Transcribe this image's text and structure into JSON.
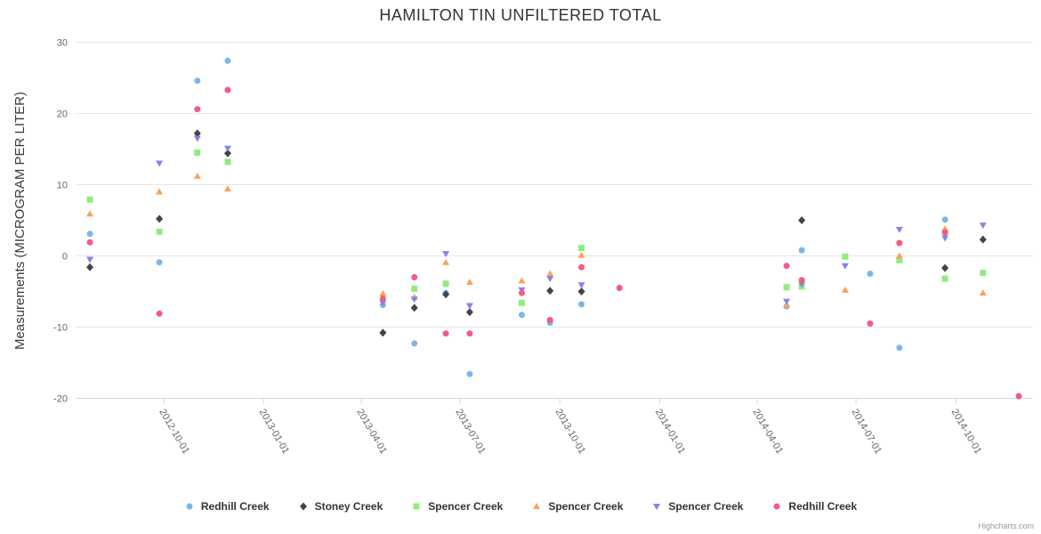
{
  "page": {
    "credits": "Highcharts.com"
  },
  "chart_data": {
    "type": "scatter",
    "title": "HAMILTON TIN UNFILTERED TOTAL",
    "xlabel": "",
    "ylabel": "Measurements (MICROGRAM PER LITER)",
    "ylim": [
      -20,
      30
    ],
    "yticks": [
      30,
      20,
      10,
      0,
      -10,
      -20
    ],
    "xticks": [
      "2012-10-01",
      "2013-01-01",
      "2013-04-01",
      "2013-07-01",
      "2013-10-01",
      "2014-01-01",
      "2014-04-01",
      "2014-07-01",
      "2014-10-01"
    ],
    "xlim": [
      "2012-07-12",
      "2014-12-10"
    ],
    "grid": true,
    "legend_position": "bottom",
    "series": [
      {
        "name": "Redhill Creek",
        "color": "#7cb5ec",
        "marker": "circle",
        "points": [
          [
            "2012-07-25",
            3.1
          ],
          [
            "2012-09-27",
            -0.9
          ],
          [
            "2012-11-01",
            24.6
          ],
          [
            "2012-11-29",
            27.4
          ],
          [
            "2013-04-21",
            -6.9
          ],
          [
            "2013-05-20",
            -12.3
          ],
          [
            "2013-06-18",
            -5.2
          ],
          [
            "2013-07-10",
            -16.6
          ],
          [
            "2013-08-27",
            -8.3
          ],
          [
            "2013-09-22",
            -9.4
          ],
          [
            "2013-10-21",
            -6.8
          ],
          [
            "2014-04-28",
            -7.1
          ],
          [
            "2014-05-12",
            0.8
          ],
          [
            "2014-07-14",
            -2.5
          ],
          [
            "2014-08-10",
            -12.9
          ],
          [
            "2014-09-21",
            5.1
          ]
        ]
      },
      {
        "name": "Stoney Creek",
        "color": "#434348",
        "marker": "diamond",
        "points": [
          [
            "2012-07-25",
            -1.6
          ],
          [
            "2012-09-27",
            5.2
          ],
          [
            "2012-11-01",
            17.2
          ],
          [
            "2012-11-29",
            14.4
          ],
          [
            "2013-04-21",
            -10.8
          ],
          [
            "2013-05-20",
            -7.3
          ],
          [
            "2013-06-18",
            -5.4
          ],
          [
            "2013-07-10",
            -7.9
          ],
          [
            "2013-09-22",
            -4.9
          ],
          [
            "2013-10-21",
            -5.0
          ],
          [
            "2014-05-12",
            5.0
          ],
          [
            "2014-09-21",
            -1.7
          ],
          [
            "2014-10-26",
            2.3
          ]
        ]
      },
      {
        "name": "Spencer Creek",
        "color": "#90ed7d",
        "marker": "square",
        "points": [
          [
            "2012-07-25",
            7.9
          ],
          [
            "2012-09-27",
            3.4
          ],
          [
            "2012-11-01",
            14.5
          ],
          [
            "2012-11-29",
            13.2
          ],
          [
            "2013-05-20",
            -4.6
          ],
          [
            "2013-06-18",
            -3.9
          ],
          [
            "2013-08-27",
            -6.6
          ],
          [
            "2013-10-21",
            1.1
          ],
          [
            "2014-04-28",
            -4.4
          ],
          [
            "2014-05-12",
            -4.3
          ],
          [
            "2014-06-21",
            -0.1
          ],
          [
            "2014-08-10",
            -0.6
          ],
          [
            "2014-09-21",
            -3.2
          ],
          [
            "2014-10-26",
            -2.4
          ]
        ]
      },
      {
        "name": "Spencer Creek",
        "color": "#f7a35c",
        "marker": "triangle",
        "points": [
          [
            "2012-07-25",
            5.9
          ],
          [
            "2012-09-27",
            9.0
          ],
          [
            "2012-11-01",
            11.2
          ],
          [
            "2012-11-29",
            9.4
          ],
          [
            "2013-04-21",
            -5.3
          ],
          [
            "2013-05-20",
            -5.8
          ],
          [
            "2013-06-18",
            -0.9
          ],
          [
            "2013-07-10",
            -3.7
          ],
          [
            "2013-08-27",
            -3.5
          ],
          [
            "2013-09-22",
            -2.5
          ],
          [
            "2013-10-21",
            0.1
          ],
          [
            "2014-04-28",
            -6.9
          ],
          [
            "2014-06-21",
            -4.8
          ],
          [
            "2014-08-10",
            0.0
          ],
          [
            "2014-09-21",
            3.8
          ],
          [
            "2014-10-26",
            -5.2
          ]
        ]
      },
      {
        "name": "Spencer Creek",
        "color": "#8085e9",
        "marker": "triangle-down",
        "points": [
          [
            "2012-07-25",
            -0.5
          ],
          [
            "2012-09-27",
            13.0
          ],
          [
            "2012-11-01",
            16.5
          ],
          [
            "2012-11-29",
            15.1
          ],
          [
            "2013-04-21",
            -6.6
          ],
          [
            "2013-05-20",
            -6.1
          ],
          [
            "2013-06-18",
            0.3
          ],
          [
            "2013-07-10",
            -7.0
          ],
          [
            "2013-08-27",
            -4.8
          ],
          [
            "2013-09-22",
            -3.2
          ],
          [
            "2013-10-21",
            -4.1
          ],
          [
            "2014-04-28",
            -6.4
          ],
          [
            "2014-05-12",
            -4.0
          ],
          [
            "2014-06-21",
            -1.4
          ],
          [
            "2014-08-10",
            3.7
          ],
          [
            "2014-09-21",
            2.5
          ],
          [
            "2014-10-26",
            4.3
          ]
        ]
      },
      {
        "name": "Redhill Creek",
        "color": "#f15c80",
        "marker": "circle",
        "points": [
          [
            "2012-07-25",
            1.9
          ],
          [
            "2012-09-27",
            -8.1
          ],
          [
            "2012-11-01",
            20.6
          ],
          [
            "2012-11-29",
            23.3
          ],
          [
            "2013-04-21",
            -6.0
          ],
          [
            "2013-05-20",
            -3.0
          ],
          [
            "2013-06-18",
            -10.9
          ],
          [
            "2013-07-10",
            -10.9
          ],
          [
            "2013-08-27",
            -5.2
          ],
          [
            "2013-09-22",
            -9.0
          ],
          [
            "2013-10-21",
            -1.6
          ],
          [
            "2013-11-25",
            -4.5
          ],
          [
            "2014-04-28",
            -1.4
          ],
          [
            "2014-05-12",
            -3.4
          ],
          [
            "2014-07-14",
            -9.5
          ],
          [
            "2014-08-10",
            1.8
          ],
          [
            "2014-09-21",
            3.3
          ],
          [
            "2014-11-28",
            -19.7
          ]
        ]
      }
    ]
  }
}
